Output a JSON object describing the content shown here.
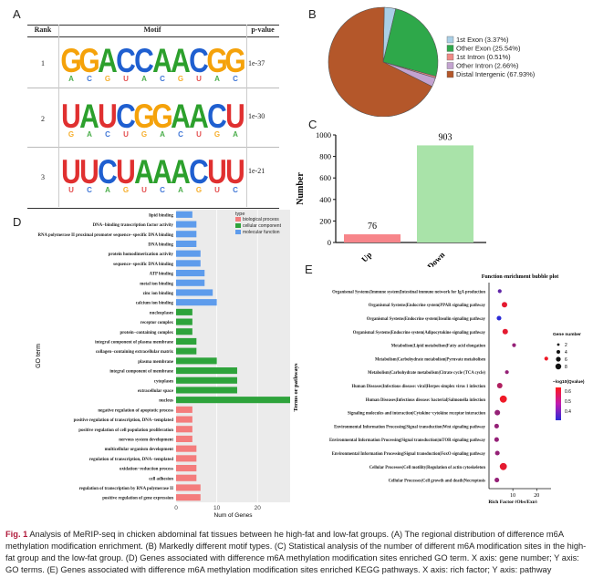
{
  "panels": {
    "A": "A",
    "B": "B",
    "C": "C",
    "D": "D",
    "E": "E"
  },
  "motif_table": {
    "headers": [
      "Rank",
      "Motif",
      "p-value"
    ],
    "rows": [
      {
        "rank": "1",
        "motif": "GGACCAACGG",
        "pvalue": "1e-37"
      },
      {
        "rank": "2",
        "motif": "UAUCGGAACU",
        "pvalue": "1e-30"
      },
      {
        "rank": "3",
        "motif": "UUCUAAACUU",
        "pvalue": "1e-21"
      }
    ]
  },
  "chart_data": [
    {
      "panel": "B",
      "type": "pie",
      "labels": [
        "1st Exon (3.37%)",
        "Other Exon (25.54%)",
        "1st Intron (0.51%)",
        "Other Intron (2.66%)",
        "Distal Intergenic (67.93%)"
      ],
      "values": [
        3.37,
        25.54,
        0.51,
        2.66,
        67.93
      ],
      "colors": [
        "#a9cfe6",
        "#2ea84a",
        "#f08a86",
        "#c3a3d0",
        "#b4572a"
      ],
      "legend": "right"
    },
    {
      "panel": "C",
      "type": "bar",
      "categories": [
        "Up",
        "Down"
      ],
      "values": [
        76,
        903
      ],
      "colors": [
        "#f7858a",
        "#a9e3a9"
      ],
      "ylabel": "Number",
      "ylim": [
        0,
        1000
      ],
      "yticks": [
        0,
        200,
        400,
        600,
        800,
        1000
      ]
    },
    {
      "panel": "D",
      "type": "bar",
      "orientation": "horizontal",
      "ylabel": "GO term",
      "xlabel": "Num of Genes",
      "xticks": [
        0,
        10,
        20
      ],
      "xlim": [
        0,
        28
      ],
      "legend_title": "type",
      "legend": [
        "biological process",
        "cellular component",
        "molecular function"
      ],
      "type_colors": {
        "biological process": "#f47c7c",
        "cellular component": "#2ea33b",
        "molecular function": "#5e9cec"
      },
      "categories": [
        {
          "label": "lipid binding",
          "type": "molecular function",
          "value": 4
        },
        {
          "label": "DNA−binding transcription factor activity",
          "type": "molecular function",
          "value": 5
        },
        {
          "label": "RNA polymerase II proximal promoter sequence−specific DNA binding",
          "type": "molecular function",
          "value": 5
        },
        {
          "label": "DNA binding",
          "type": "molecular function",
          "value": 5
        },
        {
          "label": "protein homodimerization activity",
          "type": "molecular function",
          "value": 6
        },
        {
          "label": "sequence−specific DNA binding",
          "type": "molecular function",
          "value": 6
        },
        {
          "label": "ATP binding",
          "type": "molecular function",
          "value": 7
        },
        {
          "label": "metal ion binding",
          "type": "molecular function",
          "value": 7
        },
        {
          "label": "zinc ion binding",
          "type": "molecular function",
          "value": 9
        },
        {
          "label": "calcium ion binding",
          "type": "molecular function",
          "value": 10
        },
        {
          "label": "nucleoplasm",
          "type": "cellular component",
          "value": 4
        },
        {
          "label": "receptor complex",
          "type": "cellular component",
          "value": 4
        },
        {
          "label": "protein−containing complex",
          "type": "cellular component",
          "value": 4
        },
        {
          "label": "integral component of plasma membrane",
          "type": "cellular component",
          "value": 5
        },
        {
          "label": "collagen−containing extracellular matrix",
          "type": "cellular component",
          "value": 5
        },
        {
          "label": "plasma membrane",
          "type": "cellular component",
          "value": 10
        },
        {
          "label": "integral component of membrane",
          "type": "cellular component",
          "value": 15
        },
        {
          "label": "cytoplasm",
          "type": "cellular component",
          "value": 15
        },
        {
          "label": "extracellular space",
          "type": "cellular component",
          "value": 15
        },
        {
          "label": "nucleus",
          "type": "cellular component",
          "value": 28
        },
        {
          "label": "negative regulation of apoptotic process",
          "type": "biological process",
          "value": 4
        },
        {
          "label": "positive regulation of transcription, DNA−templated",
          "type": "biological process",
          "value": 4
        },
        {
          "label": "positive regulation of cell population proliferation",
          "type": "biological process",
          "value": 4
        },
        {
          "label": "nervous system development",
          "type": "biological process",
          "value": 4
        },
        {
          "label": "multicellular organism development",
          "type": "biological process",
          "value": 5
        },
        {
          "label": "regulation of transcription, DNA−templated",
          "type": "biological process",
          "value": 5
        },
        {
          "label": "oxidation−reduction process",
          "type": "biological process",
          "value": 5
        },
        {
          "label": "cell adhesion",
          "type": "biological process",
          "value": 5
        },
        {
          "label": "regulation of transcription by RNA polymerase II",
          "type": "biological process",
          "value": 6
        },
        {
          "label": "positive regulation of gene expression",
          "type": "biological process",
          "value": 6
        }
      ]
    },
    {
      "panel": "E",
      "type": "scatter",
      "title": "Function enrichment bubble plot",
      "xlabel": "Rich Factor (Obs/Exp)",
      "ylabel": "Terms or pathways",
      "xticks": [
        10,
        20
      ],
      "xlim": [
        0,
        26
      ],
      "size_legend_title": "Gene number",
      "size_legend": [
        2,
        4,
        6,
        8
      ],
      "color_legend_title": "−log10(Qvalue)",
      "color_legend_ticks": [
        0.6,
        0.5,
        0.4
      ],
      "points": [
        {
          "label": "Organismal Systems|Immune system|Intestinal immune network for IgA production",
          "x": 4.5,
          "size": 2,
          "q": 0.35
        },
        {
          "label": "Organismal Systems|Endocrine system|PPAR signaling pathway",
          "x": 6.5,
          "size": 4,
          "q": 0.6
        },
        {
          "label": "Organismal Systems|Endocrine system|Insulin signaling pathway",
          "x": 4.2,
          "size": 3,
          "q": 0.25
        },
        {
          "label": "Organismal Systems|Endocrine system|Adipocytokine signaling pathway",
          "x": 6.8,
          "size": 4,
          "q": 0.6
        },
        {
          "label": "Metabolism|Lipid metabolism|Fatty acid elongation",
          "x": 10.5,
          "size": 2,
          "q": 0.45
        },
        {
          "label": "Metabolism|Carbohydrate metabolism|Pyruvate metabolism",
          "x": 24,
          "size": 2,
          "q": 0.62
        },
        {
          "label": "Metabolism|Carbohydrate metabolism|Citrate cycle (TCA cycle)",
          "x": 7.5,
          "size": 2,
          "q": 0.45
        },
        {
          "label": "Human Diseases|Infectious disease: viral|Herpes simplex virus 1 infection",
          "x": 4.5,
          "size": 4,
          "q": 0.5
        },
        {
          "label": "Human Diseases|Infectious disease: bacterial|Salmonella infection",
          "x": 6.0,
          "size": 6,
          "q": 0.62
        },
        {
          "label": "Signaling molecules and interaction|Cytokine−cytokine receptor interaction",
          "x": 3.5,
          "size": 4,
          "q": 0.45
        },
        {
          "label": "Environmental Information Processing|Signal transduction|Wnt signaling pathway",
          "x": 3.2,
          "size": 3,
          "q": 0.45
        },
        {
          "label": "Environmental Information Processing|Signal transduction|mTOR signaling pathway",
          "x": 3.2,
          "size": 3,
          "q": 0.45
        },
        {
          "label": "Environmental Information Processing|Signal transduction|FoxO signaling pathway",
          "x": 3.5,
          "size": 3,
          "q": 0.45
        },
        {
          "label": "Cellular Processes|Cell motility|Regulation of actin cytoskeleton",
          "x": 6.0,
          "size": 6,
          "q": 0.6
        },
        {
          "label": "Cellular Processes|Cell growth and death|Necroptosis",
          "x": 3.3,
          "size": 3,
          "q": 0.45
        }
      ]
    }
  ],
  "caption": {
    "fig_label": "Fig. 1",
    "text": "Analysis of MeRIP-seq in chicken abdominal fat tissues between he high-fat and low-fat groups. (A) The regional distribution of difference m6A methylation modification enrichment. (B) Markedly different motif types. (C) Statistical analysis of the number of different m6A modification sites in the high-fat group and the low-fat group. (D) Genes associated with difference m6A methylation modification sites enriched GO term. X axis: gene number; Y axis: GO terms. (E) Genes associated with difference m6A methylation modification sites enriched KEGG pathways. X axis: rich factor; Y axis: pathway"
  }
}
